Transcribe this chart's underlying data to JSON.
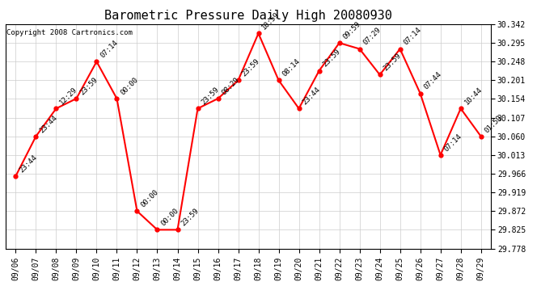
{
  "title": "Barometric Pressure Daily High 20080930",
  "copyright": "Copyright 2008 Cartronics.com",
  "dates": [
    "09/06",
    "09/07",
    "09/08",
    "09/09",
    "09/10",
    "09/11",
    "09/12",
    "09/13",
    "09/14",
    "09/15",
    "09/16",
    "09/17",
    "09/18",
    "09/19",
    "09/20",
    "09/21",
    "09/22",
    "09/23",
    "09/24",
    "09/25",
    "09/26",
    "09/27",
    "09/28",
    "09/29"
  ],
  "values": [
    29.96,
    30.06,
    30.13,
    30.155,
    30.248,
    30.155,
    29.872,
    29.825,
    29.825,
    30.13,
    30.155,
    30.201,
    30.319,
    30.201,
    30.13,
    30.225,
    30.295,
    30.28,
    30.215,
    30.28,
    30.168,
    30.013,
    30.13,
    30.06
  ],
  "labels": [
    "23:44",
    "23:44",
    "12:29",
    "23:59",
    "07:14",
    "00:00",
    "00:00",
    "00:00",
    "23:59",
    "23:59",
    "08:29",
    "23:59",
    "10:59",
    "08:14",
    "23:44",
    "23:59",
    "09:59",
    "07:29",
    "23:59",
    "07:14",
    "07:44",
    "07:14",
    "10:44",
    "01:59"
  ],
  "ylim": [
    29.778,
    30.342
  ],
  "yticks": [
    29.778,
    29.825,
    29.872,
    29.919,
    29.966,
    30.013,
    30.06,
    30.107,
    30.154,
    30.201,
    30.248,
    30.295,
    30.342
  ],
  "line_color": "red",
  "marker_color": "red",
  "bg_color": "white",
  "grid_color": "#cccccc",
  "title_fontsize": 11,
  "label_fontsize": 6.5,
  "tick_fontsize": 7,
  "copyright_fontsize": 6.5
}
